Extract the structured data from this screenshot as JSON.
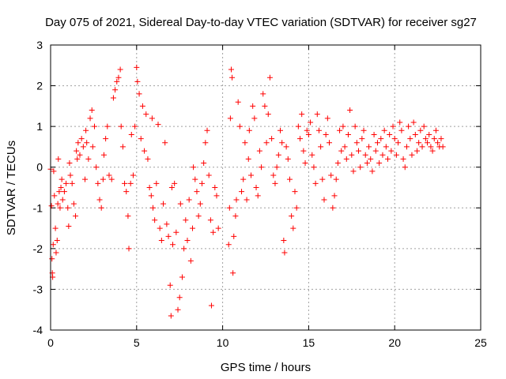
{
  "chart_data": {
    "type": "scatter",
    "title": "Day 075 of 2021, Sidereal Day-to-day VTEC variation (SDTVAR) for receiver sg27",
    "xlabel": "GPS time / hours",
    "ylabel": "SDTVAR / TECUs",
    "xlim": [
      0,
      25
    ],
    "ylim": [
      -4,
      3
    ],
    "xticks": [
      0,
      5,
      10,
      15,
      20,
      25
    ],
    "yticks": [
      -4,
      -3,
      -2,
      -1,
      0,
      1,
      2,
      3
    ],
    "xtick_labels": [
      "0",
      "5",
      "10",
      "15",
      "20",
      "25"
    ],
    "ytick_labels": [
      "-4",
      "-3",
      "-2",
      "-1",
      "0",
      "1",
      "2",
      "3"
    ],
    "grid": true,
    "marker": "+",
    "color": "#ff0000",
    "series": [
      {
        "name": "SDTVAR",
        "points": [
          [
            0.0,
            -0.05
          ],
          [
            0.05,
            -0.95
          ],
          [
            0.08,
            -2.25
          ],
          [
            0.1,
            -2.6
          ],
          [
            0.12,
            -2.7
          ],
          [
            0.15,
            -1.9
          ],
          [
            0.18,
            -0.1
          ],
          [
            0.22,
            -0.7
          ],
          [
            0.28,
            -1.5
          ],
          [
            0.32,
            -2.1
          ],
          [
            0.38,
            -1.8
          ],
          [
            0.42,
            -0.9
          ],
          [
            0.45,
            0.2
          ],
          [
            0.5,
            -0.6
          ],
          [
            0.55,
            -1.0
          ],
          [
            0.6,
            -0.5
          ],
          [
            0.65,
            -0.3
          ],
          [
            0.7,
            -0.8
          ],
          [
            0.8,
            -0.6
          ],
          [
            0.9,
            -0.4
          ],
          [
            1.0,
            -1.0
          ],
          [
            1.05,
            -1.45
          ],
          [
            1.1,
            0.1
          ],
          [
            1.15,
            -0.2
          ],
          [
            1.25,
            -0.4
          ],
          [
            1.35,
            -0.9
          ],
          [
            1.45,
            -1.2
          ],
          [
            1.5,
            0.4
          ],
          [
            1.55,
            0.2
          ],
          [
            1.6,
            0.6
          ],
          [
            1.7,
            0.3
          ],
          [
            1.8,
            0.7
          ],
          [
            1.9,
            0.5
          ],
          [
            2.0,
            -0.3
          ],
          [
            2.05,
            0.9
          ],
          [
            2.1,
            0.6
          ],
          [
            2.2,
            0.2
          ],
          [
            2.3,
            1.2
          ],
          [
            2.4,
            1.4
          ],
          [
            2.45,
            0.5
          ],
          [
            2.55,
            1.0
          ],
          [
            2.65,
            0.0
          ],
          [
            2.75,
            -0.4
          ],
          [
            2.85,
            -0.8
          ],
          [
            2.95,
            -1.0
          ],
          [
            3.05,
            -0.3
          ],
          [
            3.1,
            0.3
          ],
          [
            3.2,
            0.7
          ],
          [
            3.3,
            1.0
          ],
          [
            3.4,
            -0.2
          ],
          [
            3.55,
            -0.3
          ],
          [
            3.65,
            1.7
          ],
          [
            3.75,
            1.9
          ],
          [
            3.85,
            2.1
          ],
          [
            3.95,
            2.2
          ],
          [
            4.05,
            2.4
          ],
          [
            4.1,
            1.0
          ],
          [
            4.2,
            0.5
          ],
          [
            4.3,
            -0.4
          ],
          [
            4.4,
            -0.6
          ],
          [
            4.5,
            -1.2
          ],
          [
            4.55,
            -2.0
          ],
          [
            4.65,
            -0.4
          ],
          [
            4.7,
            0.8
          ],
          [
            4.8,
            -0.2
          ],
          [
            4.9,
            1.0
          ],
          [
            5.0,
            2.45
          ],
          [
            5.05,
            2.1
          ],
          [
            5.15,
            1.8
          ],
          [
            5.25,
            0.7
          ],
          [
            5.35,
            1.5
          ],
          [
            5.45,
            0.4
          ],
          [
            5.55,
            1.3
          ],
          [
            5.65,
            0.2
          ],
          [
            5.75,
            -0.5
          ],
          [
            5.85,
            -0.7
          ],
          [
            5.9,
            1.2
          ],
          [
            5.95,
            -1.0
          ],
          [
            6.05,
            -1.3
          ],
          [
            6.15,
            -0.4
          ],
          [
            6.25,
            1.05
          ],
          [
            6.35,
            -1.5
          ],
          [
            6.45,
            -1.8
          ],
          [
            6.55,
            -0.9
          ],
          [
            6.65,
            0.6
          ],
          [
            6.75,
            -1.4
          ],
          [
            6.85,
            -1.7
          ],
          [
            6.95,
            -2.9
          ],
          [
            7.0,
            -3.65
          ],
          [
            7.05,
            -0.5
          ],
          [
            7.1,
            -1.9
          ],
          [
            7.2,
            -0.4
          ],
          [
            7.3,
            -1.6
          ],
          [
            7.4,
            -3.5
          ],
          [
            7.5,
            -3.2
          ],
          [
            7.55,
            -0.9
          ],
          [
            7.65,
            -2.7
          ],
          [
            7.75,
            -2.0
          ],
          [
            7.85,
            -1.3
          ],
          [
            7.95,
            -1.8
          ],
          [
            8.05,
            -0.8
          ],
          [
            8.15,
            -2.3
          ],
          [
            8.25,
            -1.5
          ],
          [
            8.3,
            0.0
          ],
          [
            8.4,
            -0.3
          ],
          [
            8.5,
            -0.6
          ],
          [
            8.6,
            -1.2
          ],
          [
            8.7,
            -0.9
          ],
          [
            8.8,
            -0.4
          ],
          [
            8.9,
            0.1
          ],
          [
            9.0,
            0.6
          ],
          [
            9.1,
            0.9
          ],
          [
            9.2,
            -0.2
          ],
          [
            9.3,
            -1.3
          ],
          [
            9.35,
            -3.4
          ],
          [
            9.45,
            -1.6
          ],
          [
            9.55,
            -0.5
          ],
          [
            9.65,
            -0.7
          ],
          [
            9.75,
            -1.5
          ],
          [
            10.35,
            -1.9
          ],
          [
            10.4,
            -1.0
          ],
          [
            10.45,
            1.2
          ],
          [
            10.5,
            2.4
          ],
          [
            10.55,
            2.2
          ],
          [
            10.6,
            -2.6
          ],
          [
            10.65,
            -1.7
          ],
          [
            10.75,
            -1.2
          ],
          [
            10.8,
            -0.8
          ],
          [
            10.9,
            1.6
          ],
          [
            11.0,
            1.0
          ],
          [
            11.1,
            -0.6
          ],
          [
            11.2,
            -0.3
          ],
          [
            11.3,
            0.6
          ],
          [
            11.4,
            -0.8
          ],
          [
            11.5,
            0.2
          ],
          [
            11.55,
            0.9
          ],
          [
            11.65,
            -0.2
          ],
          [
            11.75,
            1.5
          ],
          [
            11.85,
            1.2
          ],
          [
            11.95,
            -0.5
          ],
          [
            12.05,
            -0.7
          ],
          [
            12.15,
            0.4
          ],
          [
            12.25,
            0.0
          ],
          [
            12.35,
            1.8
          ],
          [
            12.45,
            1.5
          ],
          [
            12.55,
            0.6
          ],
          [
            12.65,
            1.3
          ],
          [
            12.75,
            2.2
          ],
          [
            12.85,
            0.7
          ],
          [
            12.95,
            -0.2
          ],
          [
            13.05,
            -0.4
          ],
          [
            13.15,
            0.0
          ],
          [
            13.25,
            0.3
          ],
          [
            13.35,
            0.9
          ],
          [
            13.45,
            0.6
          ],
          [
            13.55,
            -1.8
          ],
          [
            13.6,
            -2.1
          ],
          [
            13.7,
            0.5
          ],
          [
            13.8,
            0.2
          ],
          [
            13.9,
            -0.3
          ],
          [
            14.0,
            -1.2
          ],
          [
            14.1,
            -1.5
          ],
          [
            14.2,
            -0.6
          ],
          [
            14.3,
            -1.0
          ],
          [
            14.4,
            1.0
          ],
          [
            14.5,
            0.7
          ],
          [
            14.6,
            1.3
          ],
          [
            14.7,
            0.4
          ],
          [
            14.8,
            0.1
          ],
          [
            14.9,
            0.9
          ],
          [
            15.0,
            0.8
          ],
          [
            15.1,
            1.1
          ],
          [
            15.2,
            0.3
          ],
          [
            15.3,
            0.0
          ],
          [
            15.4,
            -0.4
          ],
          [
            15.5,
            1.3
          ],
          [
            15.6,
            0.9
          ],
          [
            15.7,
            0.5
          ],
          [
            15.8,
            -0.3
          ],
          [
            15.9,
            -0.8
          ],
          [
            16.0,
            0.8
          ],
          [
            16.1,
            1.2
          ],
          [
            16.2,
            0.6
          ],
          [
            16.3,
            -0.2
          ],
          [
            16.4,
            -1.0
          ],
          [
            16.5,
            -0.7
          ],
          [
            16.6,
            -0.3
          ],
          [
            16.7,
            0.1
          ],
          [
            16.8,
            0.9
          ],
          [
            16.9,
            0.4
          ],
          [
            17.0,
            1.0
          ],
          [
            17.1,
            0.5
          ],
          [
            17.2,
            0.2
          ],
          [
            17.3,
            0.8
          ],
          [
            17.4,
            1.4
          ],
          [
            17.5,
            0.3
          ],
          [
            17.6,
            -0.1
          ],
          [
            17.7,
            1.0
          ],
          [
            17.8,
            0.6
          ],
          [
            17.9,
            0.4
          ],
          [
            18.0,
            0.0
          ],
          [
            18.1,
            0.7
          ],
          [
            18.2,
            0.9
          ],
          [
            18.3,
            0.3
          ],
          [
            18.4,
            0.1
          ],
          [
            18.5,
            0.5
          ],
          [
            18.6,
            0.2
          ],
          [
            18.7,
            -0.1
          ],
          [
            18.8,
            0.8
          ],
          [
            18.9,
            0.4
          ],
          [
            19.0,
            0.6
          ],
          [
            19.1,
            0.1
          ],
          [
            19.2,
            0.7
          ],
          [
            19.3,
            0.3
          ],
          [
            19.4,
            0.9
          ],
          [
            19.5,
            0.5
          ],
          [
            19.6,
            0.2
          ],
          [
            19.7,
            0.8
          ],
          [
            19.8,
            0.4
          ],
          [
            19.9,
            1.0
          ],
          [
            20.0,
            0.7
          ],
          [
            20.1,
            0.3
          ],
          [
            20.2,
            0.6
          ],
          [
            20.3,
            1.1
          ],
          [
            20.4,
            0.9
          ],
          [
            20.5,
            0.2
          ],
          [
            20.6,
            0.0
          ],
          [
            20.7,
            0.5
          ],
          [
            20.8,
            1.0
          ],
          [
            20.9,
            0.7
          ],
          [
            21.0,
            0.3
          ],
          [
            21.1,
            1.1
          ],
          [
            21.2,
            0.8
          ],
          [
            21.3,
            0.4
          ],
          [
            21.4,
            0.6
          ],
          [
            21.5,
            0.9
          ],
          [
            21.6,
            0.5
          ],
          [
            21.7,
            1.0
          ],
          [
            21.8,
            0.7
          ],
          [
            21.9,
            0.6
          ],
          [
            22.0,
            0.8
          ],
          [
            22.1,
            0.5
          ],
          [
            22.2,
            0.4
          ],
          [
            22.3,
            0.7
          ],
          [
            22.4,
            0.9
          ],
          [
            22.5,
            0.6
          ],
          [
            22.6,
            0.5
          ],
          [
            22.7,
            0.7
          ],
          [
            22.8,
            0.5
          ]
        ]
      }
    ]
  }
}
